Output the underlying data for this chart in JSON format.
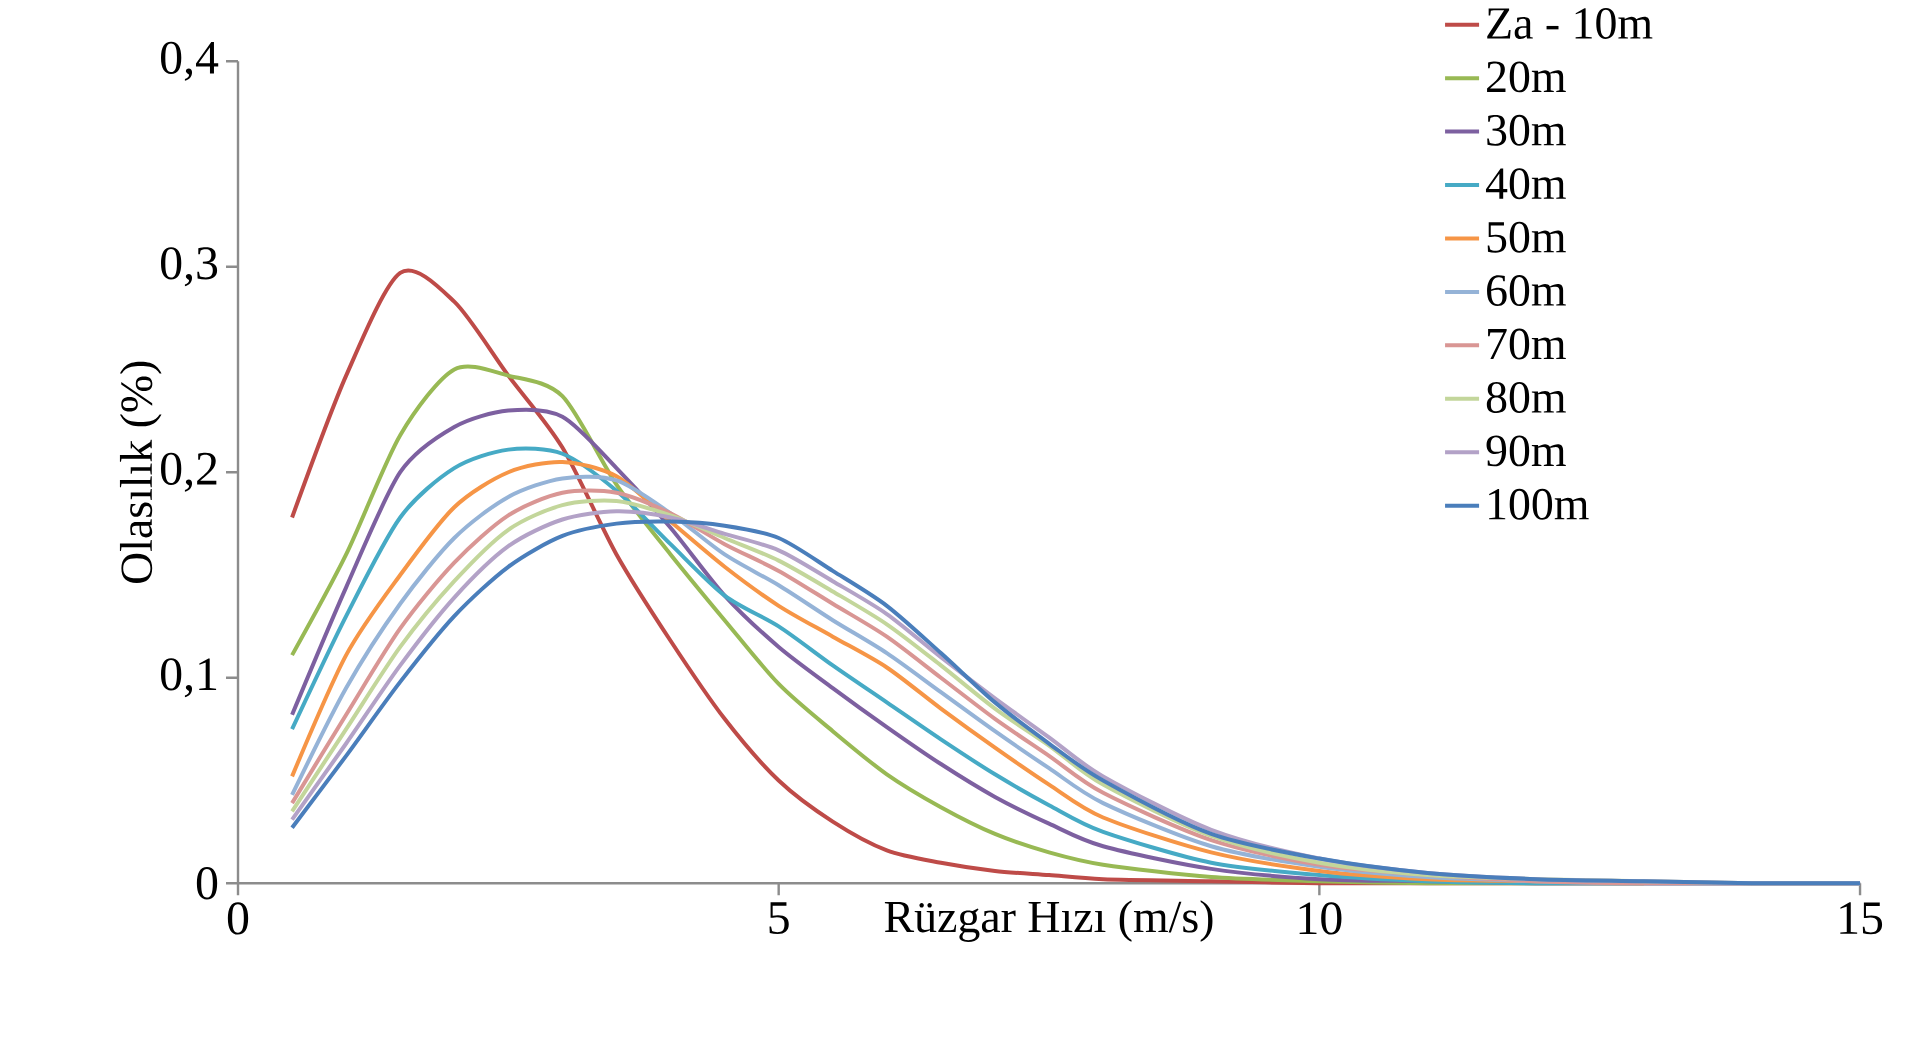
{
  "chart_data": {
    "type": "line",
    "xlabel": "Rüzgar Hızı (m/s)",
    "ylabel": "Olasılık (%)",
    "x": [
      0.5,
      1,
      1.5,
      2,
      2.5,
      3,
      3.5,
      4,
      4.5,
      5,
      5.5,
      6,
      6.5,
      7,
      7.5,
      8,
      9,
      10,
      11,
      12,
      13,
      14,
      15
    ],
    "series": [
      {
        "name": "Za - 10m",
        "color": "#be4b48",
        "values": [
          0.178,
          0.247,
          0.297,
          0.283,
          0.247,
          0.212,
          0.16,
          0.118,
          0.08,
          0.05,
          0.03,
          0.016,
          0.01,
          0.006,
          0.004,
          0.002,
          0.001,
          0,
          0,
          0,
          0,
          0,
          0
        ]
      },
      {
        "name": "20m",
        "color": "#98b954",
        "values": [
          0.111,
          0.16,
          0.218,
          0.25,
          0.247,
          0.237,
          0.194,
          0.16,
          0.128,
          0.097,
          0.074,
          0.053,
          0.037,
          0.024,
          0.015,
          0.009,
          0.003,
          0.001,
          0,
          0,
          0,
          null,
          null
        ]
      },
      {
        "name": "30m",
        "color": "#7d60a0",
        "values": [
          0.082,
          0.144,
          0.2,
          0.222,
          0.23,
          0.227,
          0.202,
          0.173,
          0.14,
          0.115,
          0.095,
          0.076,
          0.058,
          0.042,
          0.029,
          0.018,
          0.007,
          0.002,
          0.001,
          0,
          0,
          0,
          0
        ]
      },
      {
        "name": "40m",
        "color": "#46aac5",
        "values": [
          0.075,
          0.13,
          0.178,
          0.202,
          0.211,
          0.209,
          0.191,
          0.165,
          0.14,
          0.125,
          0.106,
          0.088,
          0.07,
          0.053,
          0.038,
          0.025,
          0.01,
          0.004,
          0.001,
          0,
          0,
          0,
          0
        ]
      },
      {
        "name": "50m",
        "color": "#f69546",
        "values": [
          0.052,
          0.111,
          0.15,
          0.183,
          0.2,
          0.205,
          0.198,
          0.176,
          0.154,
          0.135,
          0.12,
          0.105,
          0.085,
          0.066,
          0.048,
          0.032,
          0.015,
          0.006,
          0.002,
          0.001,
          0,
          null,
          null
        ]
      },
      {
        "name": "60m",
        "color": "#95b3d7",
        "values": [
          0.043,
          0.095,
          0.136,
          0.168,
          0.188,
          0.197,
          0.196,
          0.18,
          0.16,
          0.145,
          0.128,
          0.112,
          0.093,
          0.074,
          0.056,
          0.039,
          0.018,
          0.008,
          0.003,
          0.001,
          0,
          0,
          0
        ]
      },
      {
        "name": "70m",
        "color": "#d99694",
        "values": [
          0.039,
          0.082,
          0.124,
          0.156,
          0.179,
          0.19,
          0.19,
          0.18,
          0.165,
          0.152,
          0.136,
          0.12,
          0.1,
          0.08,
          0.062,
          0.044,
          0.021,
          0.009,
          0.004,
          0.001,
          0,
          0,
          0
        ]
      },
      {
        "name": "80m",
        "color": "#c3d69b",
        "values": [
          0.035,
          0.075,
          0.115,
          0.147,
          0.172,
          0.184,
          0.186,
          0.179,
          0.168,
          0.157,
          0.142,
          0.126,
          0.106,
          0.085,
          0.067,
          0.048,
          0.023,
          0.01,
          0.004,
          0.002,
          0.001,
          0,
          0
        ]
      },
      {
        "name": "90m",
        "color": "#b3a2c7",
        "values": [
          0.031,
          0.068,
          0.106,
          0.139,
          0.164,
          0.177,
          0.181,
          0.178,
          0.17,
          0.162,
          0.147,
          0.131,
          0.11,
          0.09,
          0.071,
          0.052,
          0.026,
          0.012,
          0.005,
          0.002,
          0.001,
          0,
          0
        ]
      },
      {
        "name": "100m",
        "color": "#4a7ebb",
        "values": [
          0.027,
          0.062,
          0.098,
          0.13,
          0.154,
          0.169,
          0.175,
          0.176,
          0.174,
          0.168,
          0.152,
          0.135,
          0.112,
          0.088,
          0.068,
          0.05,
          0.024,
          0.012,
          0.005,
          0.002,
          0.001,
          0,
          0
        ]
      }
    ],
    "xlim": [
      0,
      15
    ],
    "xticks": [
      0,
      5,
      10,
      15
    ],
    "ylim": [
      0,
      0.4
    ],
    "yticks": [
      {
        "value": 0,
        "label": "0"
      },
      {
        "value": 0.1,
        "label": "0,1"
      },
      {
        "value": 0.2,
        "label": "0,2"
      },
      {
        "value": 0.3,
        "label": "0,3"
      },
      {
        "value": 0.4,
        "label": "0,4"
      }
    ],
    "grid": false,
    "legend": "top right",
    "marker": "none",
    "line_style": "solid"
  }
}
